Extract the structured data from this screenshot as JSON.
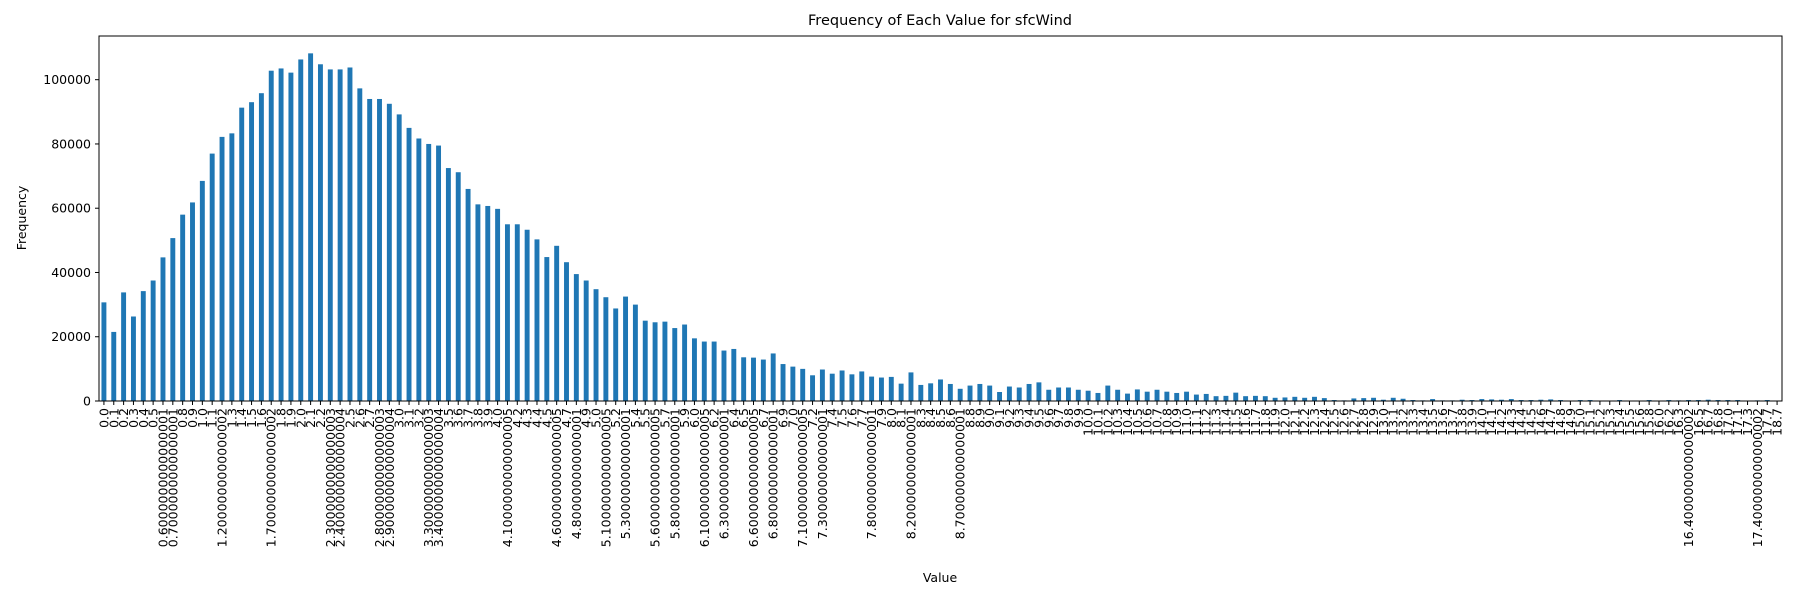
{
  "chart_data": {
    "type": "bar",
    "title": "Frequency of Each Value for sfcWind",
    "xlabel": "Value",
    "ylabel": "Frequency",
    "categories": [
      "0.0",
      "0.1",
      "0.2",
      "0.3",
      "0.4",
      "0.5",
      "0.6000000000000001",
      "0.7000000000000001",
      "0.8",
      "0.9",
      "1.0",
      "1.1",
      "1.2000000000000002",
      "1.3",
      "1.4",
      "1.5",
      "1.6",
      "1.7000000000000002",
      "1.8",
      "1.9",
      "2.0",
      "2.1",
      "2.2",
      "2.3000000000000003",
      "2.4000000000000004",
      "2.5",
      "2.6",
      "2.7",
      "2.8000000000000003",
      "2.9000000000000004",
      "3.0",
      "3.1",
      "3.2",
      "3.3000000000000003",
      "3.4000000000000004",
      "3.5",
      "3.6",
      "3.7",
      "3.8",
      "3.9",
      "4.0",
      "4.1000000000000005",
      "4.2",
      "4.3",
      "4.4",
      "4.5",
      "4.6000000000000005",
      "4.7",
      "4.800000000000001",
      "4.9",
      "5.0",
      "5.1000000000000005",
      "5.2",
      "5.300000000000001",
      "5.4",
      "5.5",
      "5.6000000000000005",
      "5.7",
      "5.800000000000001",
      "5.9",
      "6.0",
      "6.1000000000000005",
      "6.2",
      "6.300000000000001",
      "6.4",
      "6.5",
      "6.6000000000000005",
      "6.7",
      "6.800000000000001",
      "6.9",
      "7.0",
      "7.1000000000000005",
      "7.2",
      "7.300000000000001",
      "7.4",
      "7.5",
      "7.6",
      "7.7",
      "7.800000000000001",
      "7.9",
      "8.0",
      "8.1",
      "8.200000000000001",
      "8.3",
      "8.4",
      "8.5",
      "8.6",
      "8.700000000000001",
      "8.8",
      "8.9",
      "9.0",
      "9.1",
      "9.2",
      "9.3",
      "9.4",
      "9.5",
      "9.6",
      "9.7",
      "9.8",
      "9.9",
      "10.0",
      "10.1",
      "10.2",
      "10.3",
      "10.4",
      "10.5",
      "10.6",
      "10.7",
      "10.8",
      "10.9",
      "11.0",
      "11.1",
      "11.2",
      "11.3",
      "11.4",
      "11.5",
      "11.6",
      "11.7",
      "11.8",
      "11.9",
      "12.0",
      "12.1",
      "12.2",
      "12.3",
      "12.4",
      "12.5",
      "12.6",
      "12.7",
      "12.8",
      "12.9",
      "13.0",
      "13.1",
      "13.2",
      "13.3",
      "13.4",
      "13.5",
      "13.6",
      "13.7",
      "13.8",
      "13.9",
      "14.0",
      "14.1",
      "14.2",
      "14.3",
      "14.4",
      "14.5",
      "14.6",
      "14.7",
      "14.8",
      "14.9",
      "15.0",
      "15.1",
      "15.2",
      "15.3",
      "15.4",
      "15.5",
      "15.6",
      "15.8",
      "16.0",
      "16.2",
      "16.3",
      "16.400000000000002",
      "16.5",
      "16.7",
      "16.8",
      "17.0",
      "17.1",
      "17.3",
      "17.400000000000002",
      "17.7",
      "18.7"
    ],
    "values": [
      30700,
      21500,
      33800,
      26300,
      34200,
      37500,
      44700,
      50700,
      58000,
      61800,
      68500,
      77000,
      82200,
      83300,
      91300,
      93000,
      95800,
      102800,
      103500,
      102200,
      106300,
      108200,
      104800,
      103200,
      103200,
      103800,
      97300,
      94000,
      94000,
      92500,
      89200,
      85000,
      81700,
      80000,
      79500,
      72500,
      71200,
      66000,
      61200,
      60700,
      59800,
      55000,
      55000,
      53300,
      50300,
      44800,
      48300,
      43200,
      39500,
      37500,
      34800,
      32300,
      28800,
      32500,
      30000,
      25000,
      24500,
      24700,
      22700,
      23800,
      19500,
      18500,
      18500,
      15700,
      16200,
      13600,
      13500,
      12900,
      14800,
      11500,
      10700,
      10000,
      8000,
      9800,
      8500,
      9500,
      8300,
      9200,
      7600,
      7300,
      7500,
      5400,
      8900,
      5000,
      5500,
      6700,
      5300,
      3800,
      4800,
      5300,
      4800,
      2800,
      4500,
      4200,
      5300,
      5800,
      3500,
      4200,
      4200,
      3500,
      3200,
      2500,
      4800,
      3500,
      2300,
      3600,
      2900,
      3500,
      2900,
      2500,
      2900,
      2000,
      2200,
      1500,
      1600,
      2600,
      1500,
      1600,
      1500,
      1000,
      1100,
      1300,
      1000,
      1300,
      900,
      300,
      200,
      800,
      900,
      1000,
      400,
      1000,
      700,
      300,
      200,
      600,
      200,
      200,
      400,
      300,
      600,
      500,
      400,
      600,
      300,
      300,
      400,
      500,
      300,
      100,
      300,
      300,
      100,
      100,
      300,
      100,
      100,
      300,
      100,
      300,
      200,
      300,
      300,
      400,
      300,
      300,
      300,
      100,
      200,
      300,
      100
    ],
    "color": "#1f77b4",
    "ylim": [
      0,
      113600
    ],
    "yticks": [
      0,
      20000,
      40000,
      60000,
      80000,
      100000
    ],
    "grid": false
  }
}
